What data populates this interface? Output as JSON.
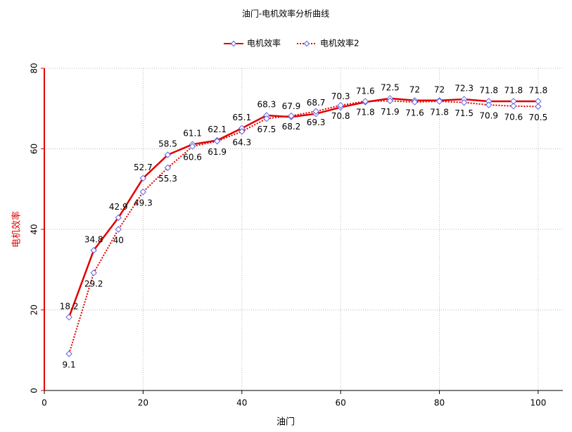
{
  "chart_data": {
    "type": "line",
    "title": "油门-电机效率分析曲线",
    "x_label": "油门",
    "y_label": "电机效率",
    "x": [
      5,
      10,
      15,
      20,
      25,
      30,
      35,
      40,
      45,
      50,
      55,
      60,
      65,
      70,
      75,
      80,
      85,
      90,
      95,
      100
    ],
    "series": [
      {
        "name": "电机效率",
        "color": "#e00000",
        "dash": false,
        "values": [
          18.2,
          34.8,
          42.9,
          52.7,
          58.5,
          61.1,
          62.1,
          65.1,
          68.3,
          67.9,
          68.7,
          70.3,
          71.6,
          72.5,
          72,
          72,
          72.3,
          71.8,
          71.8,
          71.8
        ]
      },
      {
        "name": "电机效率2",
        "color": "#e00000",
        "dash": true,
        "values": [
          9.1,
          29.2,
          40,
          49.3,
          55.3,
          60.6,
          61.9,
          64.3,
          67.5,
          68.2,
          69.3,
          70.8,
          71.8,
          71.9,
          71.6,
          71.8,
          71.5,
          70.9,
          70.6,
          70.5
        ]
      }
    ],
    "marker_color": "#6060e0",
    "xlim": [
      0,
      105
    ],
    "xticks": [
      0,
      20,
      40,
      60,
      80,
      100
    ],
    "ylim": [
      0,
      80
    ],
    "yticks": [
      0,
      20,
      40,
      60,
      80
    ],
    "grid": true,
    "legend": "top"
  }
}
